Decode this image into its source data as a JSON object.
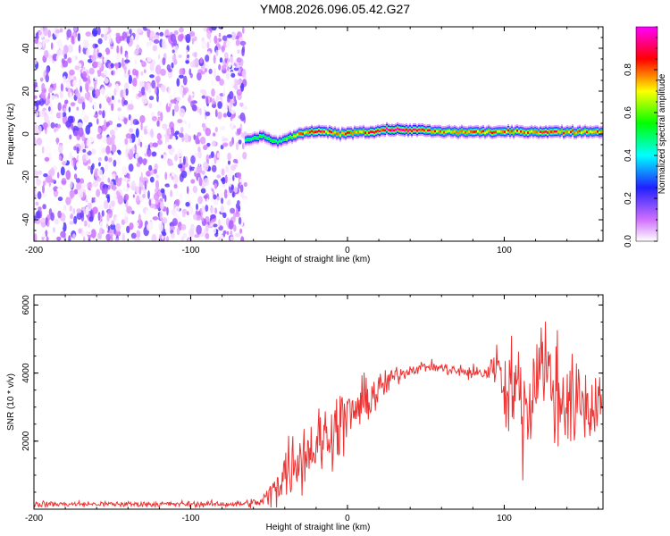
{
  "figure": {
    "title": "YM08.2026.096.05.42.G27"
  },
  "chart_data": [
    {
      "type": "heatmap",
      "xlabel": "Height of straight line (km)",
      "ylabel": "Frequency (Hz)",
      "xlim": [
        -200,
        163
      ],
      "ylim": [
        -50,
        50
      ],
      "xticks": [
        -200,
        -100,
        0,
        100
      ],
      "yticks": [
        -40,
        -20,
        0,
        20,
        40
      ],
      "colorbar": {
        "label": "Normalized spectral amplitude",
        "range": [
          0,
          1
        ],
        "ticks": [
          "0.0",
          "0.2",
          "0.4",
          "0.6",
          "0.8"
        ],
        "tick_values": [
          0.0,
          0.2,
          0.4,
          0.6,
          0.8
        ],
        "colors": [
          "#ffffff",
          "#d070ff",
          "#2020ff",
          "#00ffff",
          "#00ff00",
          "#ffff00",
          "#ff0000",
          "#ff00ff"
        ]
      },
      "noise_region": {
        "x_range": [
          -200,
          -65
        ],
        "y_range": [
          -50,
          50
        ],
        "amplitude_range": [
          0.0,
          0.2
        ]
      },
      "signal_track": {
        "x": [
          -65,
          -55,
          -45,
          -35,
          -25,
          -15,
          -5,
          5,
          15,
          25,
          40,
          60,
          80,
          100,
          120,
          140,
          163
        ],
        "freq": [
          -3,
          -1,
          -4,
          -1,
          1,
          1,
          0,
          1,
          1,
          2,
          2,
          1,
          1,
          1,
          1,
          1,
          1
        ],
        "peak_amplitude": [
          0.55,
          0.6,
          0.5,
          0.7,
          0.85,
          0.85,
          0.8,
          0.8,
          0.85,
          0.95,
          0.95,
          0.75,
          0.8,
          0.8,
          0.85,
          0.85,
          0.8
        ]
      }
    },
    {
      "type": "line",
      "xlabel": "Height of straight line (km)",
      "ylabel": "SNR (10 * v/v)",
      "xlim": [
        -200,
        163
      ],
      "ylim": [
        0,
        6300
      ],
      "xticks": [
        -200,
        -100,
        0,
        100
      ],
      "yticks": [
        2000,
        4000,
        6000
      ],
      "series": [
        {
          "name": "SNR",
          "color": "#ee3333",
          "x": [
            -200,
            -150,
            -100,
            -70,
            -55,
            -48,
            -40,
            -30,
            -20,
            -10,
            0,
            10,
            20,
            30,
            40,
            50,
            60,
            70,
            80,
            90,
            95,
            100,
            105,
            110,
            115,
            120,
            125,
            130,
            135,
            140,
            145,
            150,
            155,
            163
          ],
          "mean": [
            150,
            150,
            150,
            150,
            200,
            500,
            1100,
            1600,
            1900,
            2300,
            2700,
            3100,
            3500,
            3900,
            4100,
            4200,
            4150,
            4050,
            4000,
            4000,
            4400,
            3600,
            3800,
            3200,
            2700,
            4200,
            4500,
            3600,
            3300,
            3400,
            2900,
            3100,
            2900,
            3400
          ],
          "amp": [
            80,
            80,
            80,
            80,
            150,
            400,
            800,
            1000,
            1000,
            900,
            900,
            700,
            500,
            300,
            150,
            150,
            150,
            200,
            200,
            250,
            600,
            1200,
            1100,
            1400,
            1500,
            1800,
            1600,
            1400,
            1500,
            1500,
            1300,
            1200,
            1100,
            800
          ]
        }
      ]
    }
  ]
}
